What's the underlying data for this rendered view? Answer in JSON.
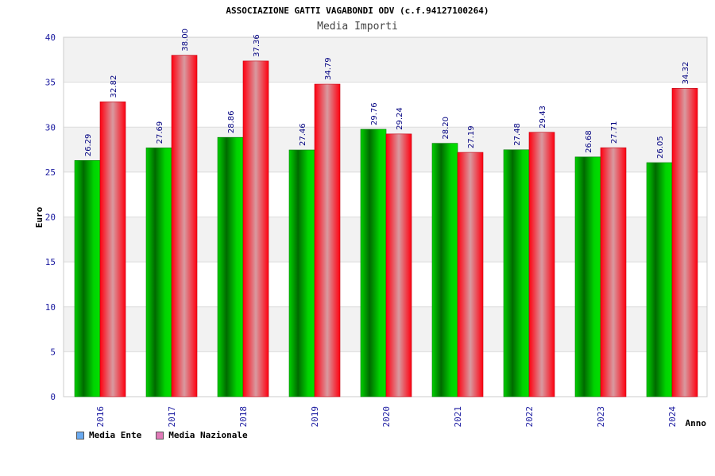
{
  "chart_data": {
    "type": "bar",
    "title": "ASSOCIAZIONE GATTI VAGABONDI ODV (c.f.94127100264)",
    "subtitle": "Media Importi",
    "xlabel": "Anno",
    "ylabel": "Euro",
    "ylim": [
      0,
      40
    ],
    "yticks": [
      0,
      5,
      10,
      15,
      20,
      25,
      30,
      35,
      40
    ],
    "categories": [
      "2016",
      "2017",
      "2018",
      "2019",
      "2020",
      "2021",
      "2022",
      "2023",
      "2024"
    ],
    "series": [
      {
        "name": "Media Ente",
        "values": [
          26.29,
          27.69,
          28.86,
          27.46,
          29.76,
          28.2,
          27.48,
          26.68,
          26.05
        ],
        "labels": [
          "26.29",
          "27.69",
          "28.86",
          "27.46",
          "29.76",
          "28.20",
          "27.48",
          "26.68",
          "26.05"
        ],
        "color": "#00b400",
        "legend_color": "#6aaaf0"
      },
      {
        "name": "Media Nazionale",
        "values": [
          32.82,
          38.0,
          37.36,
          34.79,
          29.24,
          27.19,
          29.43,
          27.71,
          34.32
        ],
        "labels": [
          "32.82",
          "38.00",
          "37.36",
          "34.79",
          "29.24",
          "27.19",
          "29.43",
          "27.71",
          "34.32"
        ],
        "color": "#ff1a2a",
        "legend_color": "#e07ab8"
      }
    ],
    "grid": true,
    "legend_position": "bottom-left"
  }
}
